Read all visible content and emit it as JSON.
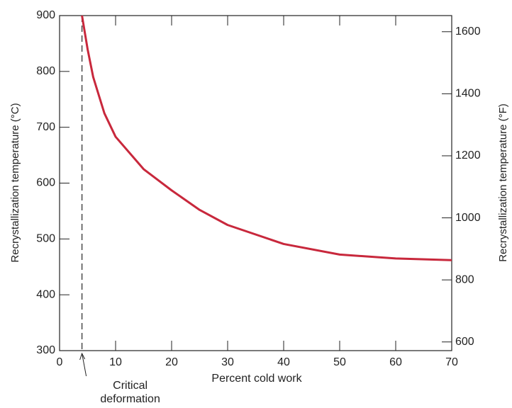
{
  "chart_data": {
    "type": "line",
    "x_label": "Percent cold work",
    "y_label": "Recrystallization temperature (°C)",
    "y2_label": "Recrystallization temperature (°F)",
    "x": [
      4,
      5,
      6,
      8,
      10,
      15,
      20,
      25,
      30,
      40,
      50,
      60,
      70
    ],
    "series": [
      {
        "color": "#c8283c",
        "values": [
          900,
          840,
          790,
          725,
          683,
          625,
          587,
          552,
          525,
          491,
          472,
          465,
          462
        ]
      }
    ],
    "xlim": [
      0,
      70
    ],
    "xticks": [
      0,
      10,
      20,
      30,
      40,
      50,
      60,
      70
    ],
    "ylim": [
      300,
      900
    ],
    "yticks": [
      300,
      400,
      500,
      600,
      700,
      800,
      900
    ],
    "y2lim": [
      572,
      1652
    ],
    "y2ticks": [
      600,
      800,
      1000,
      1200,
      1400,
      1600
    ],
    "critical_deformation": {
      "x": 4,
      "label": [
        "Critical",
        "deformation"
      ]
    }
  }
}
